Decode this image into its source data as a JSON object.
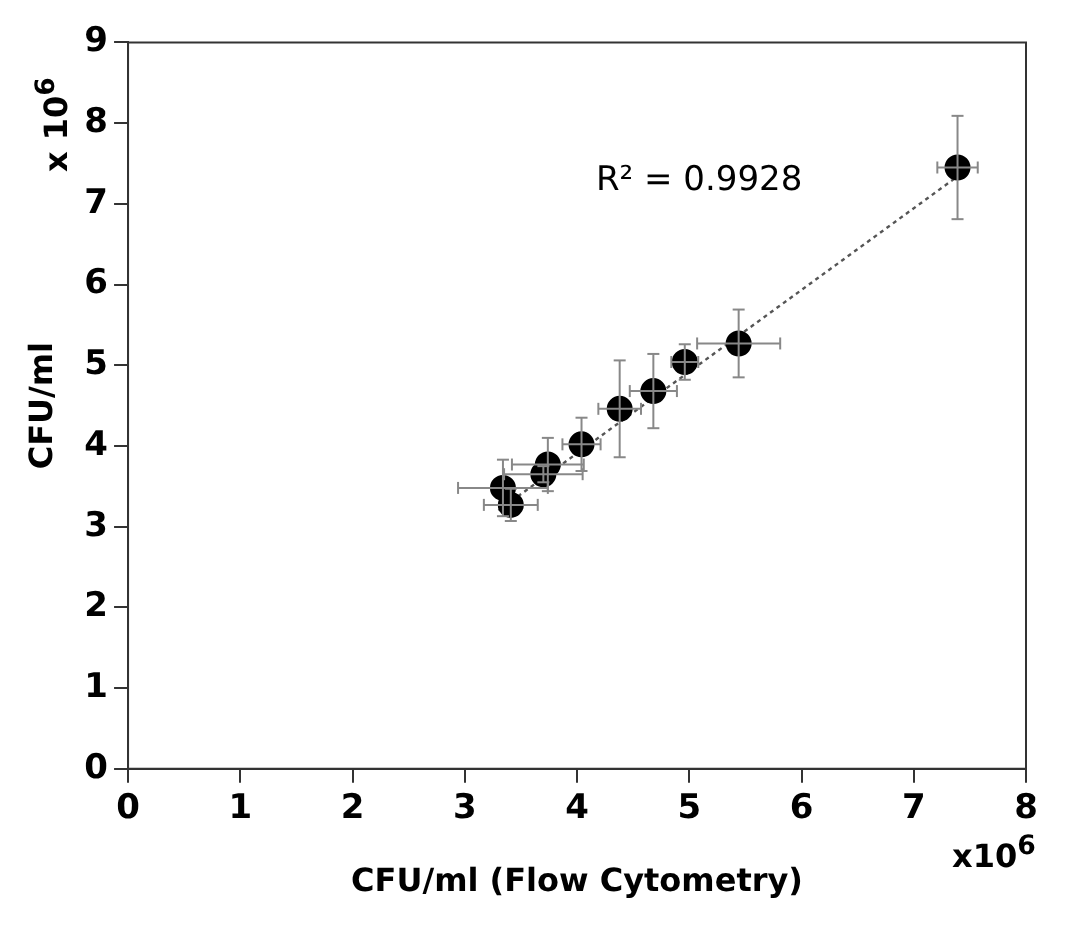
{
  "chart_data": {
    "type": "scatter",
    "xlabel": "CFU/ml (Flow Cytometry)",
    "ylabel": "CFU/ml",
    "annotations": [
      "R² = 0.9928",
      "x 10$^{6}$",
      "x10$^{6}$"
    ],
    "xlim": [
      0,
      8
    ],
    "xticks": [
      0,
      1,
      2,
      3,
      4,
      5,
      6,
      7,
      8
    ],
    "ylim": [
      0,
      9
    ],
    "yticks": [
      0,
      1,
      2,
      3,
      4,
      5,
      6,
      7,
      8,
      9
    ],
    "grid": false,
    "legend": false,
    "marker": "circle",
    "series": [
      {
        "color": "#000000",
        "x": [
          3.34,
          3.41,
          3.7,
          3.74,
          4.04,
          4.38,
          4.68,
          4.96,
          5.44,
          7.39
        ],
        "values": [
          3.48,
          3.27,
          3.65,
          3.77,
          4.02,
          4.46,
          4.68,
          5.04,
          5.27,
          7.45
        ],
        "errors": [
          0.35,
          0.2,
          0.1,
          0.33,
          0.33,
          0.6,
          0.46,
          0.22,
          0.42,
          0.64
        ],
        "xerrors": [
          0.4,
          0.24,
          0.35,
          0.32,
          0.17,
          0.19,
          0.21,
          0.12,
          0.37,
          0.18
        ]
      },
      {
        "type": "line",
        "color": "#555555",
        "line_style": "dotted",
        "marker": "none",
        "x": [
          3.3,
          7.4
        ],
        "values": [
          3.2,
          7.35
        ]
      }
    ]
  }
}
